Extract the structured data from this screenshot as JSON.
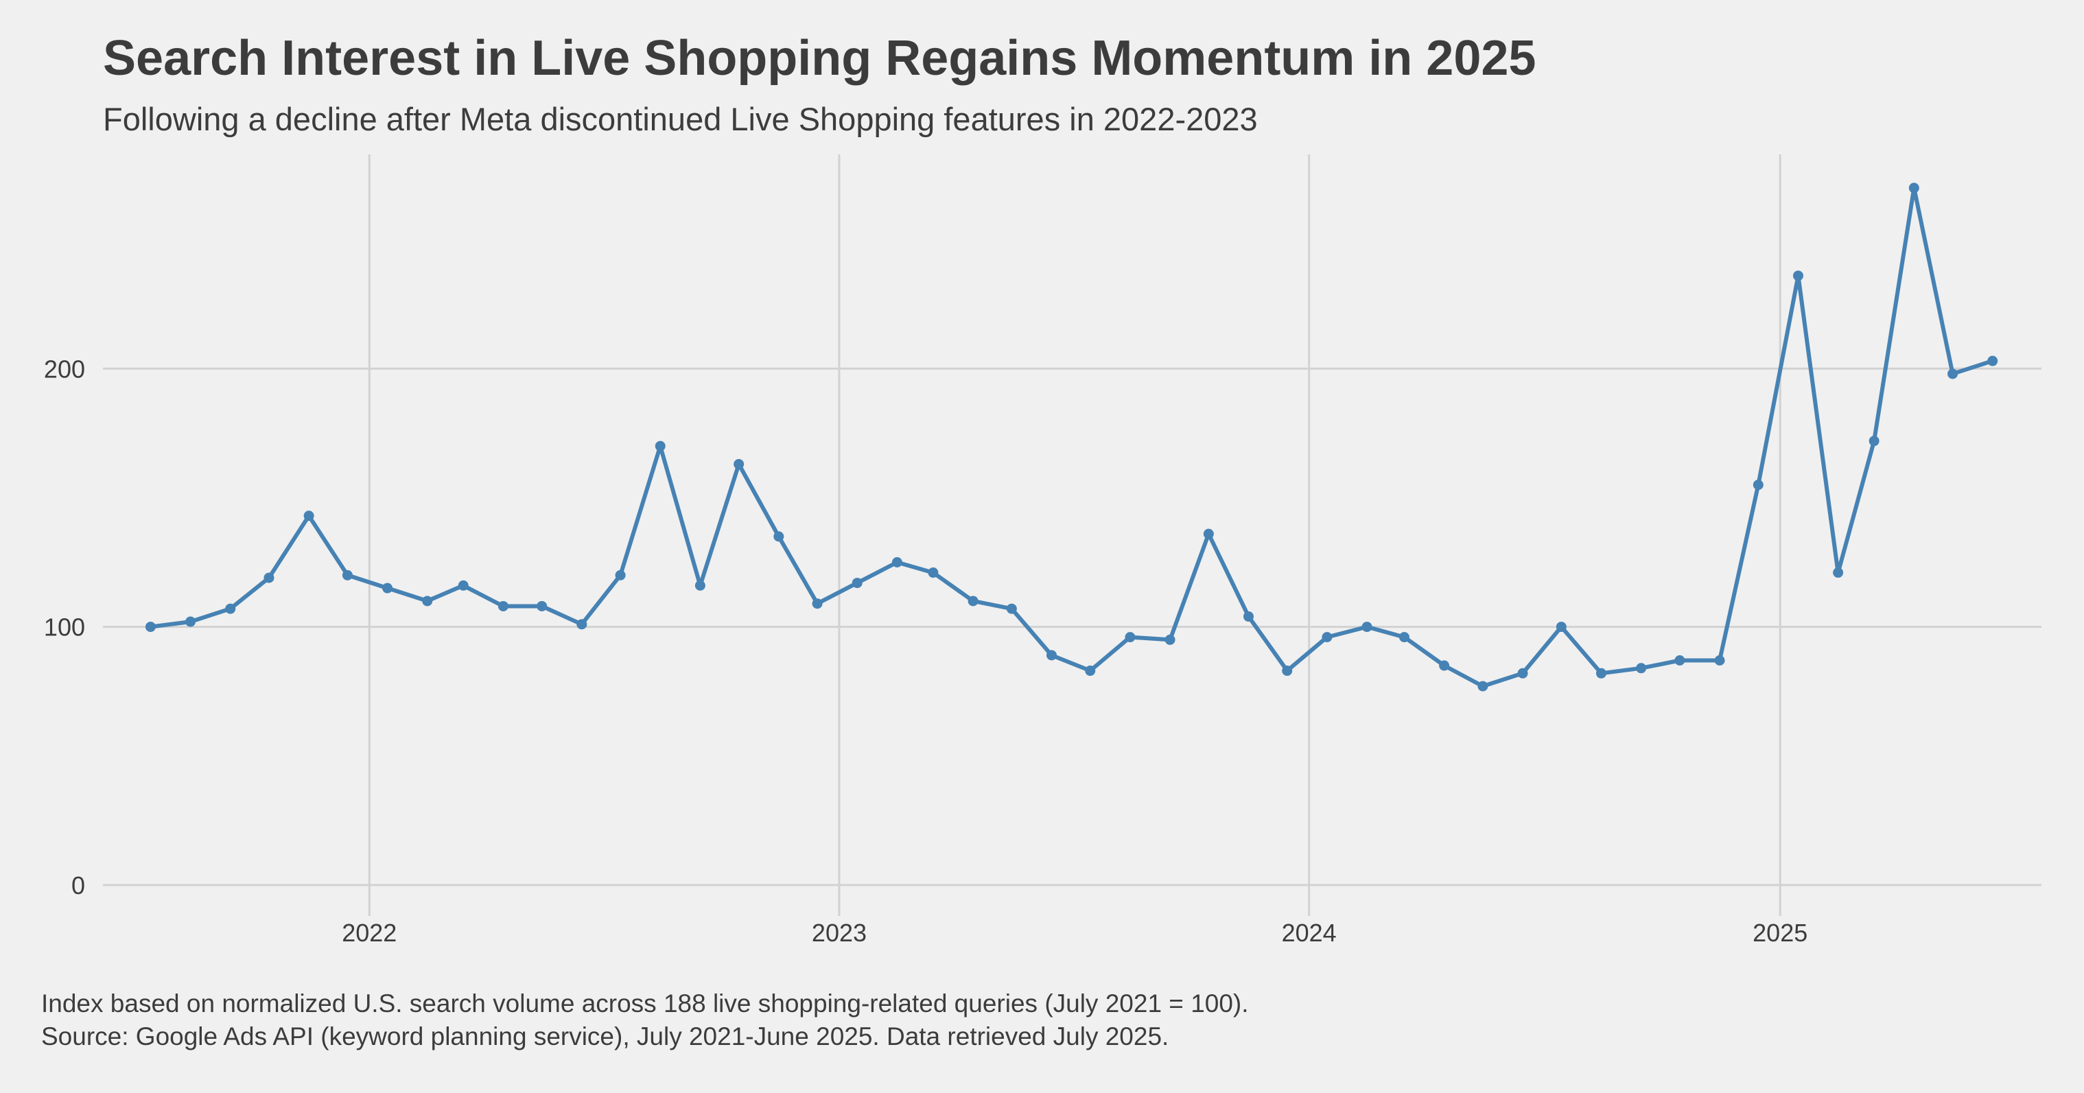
{
  "title": "Search Interest in Live Shopping Regains Momentum in 2025",
  "subtitle": "Following a decline after Meta discontinued Live Shopping features in 2022-2023",
  "caption": [
    "Index based on normalized U.S. search volume across 188 live shopping-related queries (July 2021 = 100).",
    "Source: Google Ads API (keyword planning service), July 2021-June 2025. Data retrieved July 2025."
  ],
  "chart_data": {
    "type": "line",
    "title": "Search Interest in Live Shopping Regains Momentum in 2025",
    "subtitle": "Following a decline after Meta discontinued Live Shopping features in 2022-2023",
    "xlabel": "",
    "ylabel": "",
    "x": [
      "2021-07",
      "2021-08",
      "2021-09",
      "2021-10",
      "2021-11",
      "2021-12",
      "2022-01",
      "2022-02",
      "2022-03",
      "2022-04",
      "2022-05",
      "2022-06",
      "2022-07",
      "2022-08",
      "2022-09",
      "2022-10",
      "2022-11",
      "2022-12",
      "2023-01",
      "2023-02",
      "2023-03",
      "2023-04",
      "2023-05",
      "2023-06",
      "2023-07",
      "2023-08",
      "2023-09",
      "2023-10",
      "2023-11",
      "2023-12",
      "2024-01",
      "2024-02",
      "2024-03",
      "2024-04",
      "2024-05",
      "2024-06",
      "2024-07",
      "2024-08",
      "2024-09",
      "2024-10",
      "2024-11",
      "2024-12",
      "2025-01",
      "2025-02",
      "2025-03",
      "2025-04",
      "2025-05",
      "2025-06"
    ],
    "series": [
      {
        "values": [
          100,
          102,
          107,
          119,
          143,
          120,
          115,
          110,
          116,
          108,
          108,
          101,
          120,
          170,
          116,
          163,
          135,
          109,
          117,
          125,
          121,
          110,
          107,
          89,
          83,
          96,
          95,
          136,
          104,
          83,
          96,
          100,
          96,
          85,
          77,
          82,
          100,
          82,
          84,
          87,
          87,
          155,
          236,
          121,
          172,
          270,
          198,
          203
        ]
      }
    ],
    "xlim": [
      "2021-06-08",
      "2025-07-23"
    ],
    "ylim": [
      -12,
      283
    ],
    "x_ticks": [
      "2022",
      "2023",
      "2024",
      "2025"
    ],
    "x_tick_dates": [
      "2022-01-01",
      "2023-01-01",
      "2024-01-01",
      "2025-01-01"
    ],
    "y_ticks": [
      0,
      100,
      200
    ],
    "grid": true,
    "legend": "none",
    "line_color": "#4682b4",
    "grid_color": "#d2d2d2",
    "background": "#f0f0f0"
  }
}
